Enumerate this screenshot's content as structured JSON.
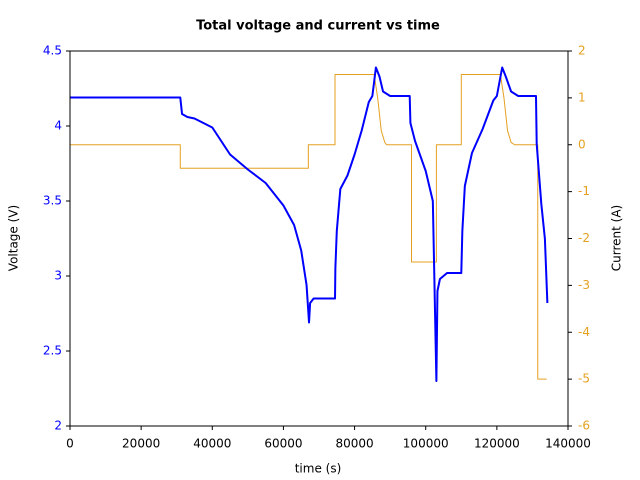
{
  "chart_data": {
    "type": "line",
    "title": "Total voltage and current vs time",
    "xlabel": "time (s)",
    "ylabel": "Voltage (V)",
    "y2label": "Current (A)",
    "xlim": [
      0,
      140000
    ],
    "xticks": [
      0,
      20000,
      40000,
      60000,
      80000,
      100000,
      120000,
      140000
    ],
    "ylim": [
      2,
      4.5
    ],
    "yticks": [
      2,
      2.5,
      3,
      3.5,
      4,
      4.5
    ],
    "y2lim": [
      -6,
      2
    ],
    "y2ticks": [
      -6,
      -5,
      -4,
      -3,
      -2,
      -1,
      0,
      1,
      2
    ],
    "ycolor": "#0000ff",
    "y2color": "#e5a020",
    "series": [
      {
        "color": "#0000ff",
        "x": [
          0,
          31000,
          31500,
          33000,
          35000,
          40000,
          45000,
          50000,
          55000,
          60000,
          63000,
          65000,
          66500,
          67200,
          67500,
          68500,
          74500,
          74600,
          75000,
          76000,
          78000,
          80000,
          82000,
          84000,
          85000,
          86000,
          87000,
          88000,
          90000,
          95500,
          95700,
          97000,
          100000,
          102000,
          103000,
          103300,
          104000,
          106000,
          110000,
          110300,
          111000,
          113000,
          116000,
          119000,
          120000,
          121500,
          122500,
          124000,
          126000,
          131000,
          131200,
          132500,
          133500,
          134200
        ],
        "values": [
          4.19,
          4.19,
          4.08,
          4.06,
          4.05,
          3.99,
          3.81,
          3.71,
          3.62,
          3.47,
          3.34,
          3.17,
          2.94,
          2.69,
          2.82,
          2.85,
          2.85,
          3.05,
          3.3,
          3.58,
          3.67,
          3.81,
          3.97,
          4.16,
          4.2,
          4.39,
          4.33,
          4.23,
          4.2,
          4.2,
          4.02,
          3.9,
          3.7,
          3.5,
          2.3,
          2.9,
          2.98,
          3.02,
          3.02,
          3.3,
          3.6,
          3.82,
          3.98,
          4.17,
          4.2,
          4.39,
          4.33,
          4.23,
          4.2,
          4.2,
          3.88,
          3.48,
          3.25,
          2.82
        ]
      },
      {
        "color": "#e5a020",
        "axis": "y2",
        "x": [
          0,
          31000,
          31000,
          67000,
          67000,
          74500,
          74500,
          85500,
          86500,
          87500,
          88500,
          89000,
          96000,
          96000,
          103000,
          103000,
          110000,
          110000,
          121000,
          122000,
          123000,
          124000,
          125000,
          131500,
          131500,
          134000
        ],
        "values": [
          0,
          0,
          -0.5,
          -0.5,
          0,
          0,
          1.5,
          1.5,
          1.0,
          0.3,
          0.05,
          0,
          0,
          -2.5,
          -2.5,
          0,
          0,
          1.5,
          1.5,
          1.0,
          0.3,
          0.05,
          0,
          0,
          -5,
          -5
        ]
      }
    ]
  }
}
